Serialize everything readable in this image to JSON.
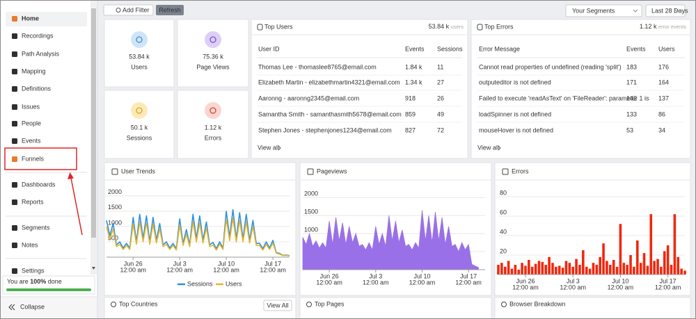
{
  "sidebar": {
    "nav": [
      "Home",
      "Recordings",
      "Path Analysis",
      "Mapping",
      "Definitions",
      "Issues",
      "People",
      "Events",
      "Funnels",
      "Dashboards",
      "Reports",
      "Segments",
      "Notes",
      "Settings"
    ],
    "progress_text": [
      "You are",
      "100%",
      "done"
    ],
    "collapse": "Collapse"
  },
  "toolbar": {
    "add_filter": "Add Filter",
    "refresh": "Refresh",
    "segments": "Your Segments",
    "date_range": "Last 28 Days"
  },
  "stats": [
    {
      "value": "53.84 k",
      "label": "Users"
    },
    {
      "value": "75.36 k",
      "label": "Page Views"
    },
    {
      "value": "50.1 k",
      "label": "Sessions"
    },
    {
      "value": "1.12 k",
      "label": "Errors"
    }
  ],
  "top_users": {
    "title": "Top Users",
    "total": "53.84 k",
    "unit": "users",
    "columns": [
      "User ID",
      "Events",
      "Sessions"
    ],
    "rows": [
      [
        "Thomas Lee - thomaslee8765@email.com",
        "1.84 k",
        11
      ],
      [
        "Elizabeth Martin - elizabethmartin4321@email.com",
        "1.34 k",
        27
      ],
      [
        "Aaronng - aaronng2345@email.com",
        918,
        26
      ],
      [
        "Samantha Smith - samanthasmith5678@email.com",
        859,
        49
      ],
      [
        "Stephen Jones - stephenjones1234@email.com",
        827,
        72
      ]
    ],
    "view_all": "View all"
  },
  "top_errors": {
    "title": "Top Errors",
    "total": "1.12 k",
    "unit": "error events",
    "columns": [
      "Error Message",
      "Events",
      "Users"
    ],
    "rows": [
      [
        "Cannot read properties of undefined (reading 'split')",
        183,
        176
      ],
      [
        "outputeditor is not defined",
        171,
        164
      ],
      [
        "Failed to execute 'readAsText' on 'FileReader': parameter 1 is",
        142,
        137
      ],
      [
        "loadSpinner is not defined",
        133,
        86
      ],
      [
        "mouseHover is not defined",
        53,
        34
      ]
    ],
    "view_all": "View all"
  },
  "chart_data": [
    {
      "type": "line",
      "title": "User Trends",
      "legend": "bottom",
      "grid": true,
      "xlim": [
        0,
        55
      ],
      "xticks": [
        {
          "value": 8,
          "label": "Jun 26",
          "sublabel": "12:00 am"
        },
        {
          "value": 22,
          "label": "Jul 3",
          "sublabel": "12:00 am"
        },
        {
          "value": 36,
          "label": "Jul 10",
          "sublabel": "12:00 am"
        },
        {
          "value": 50,
          "label": "Jul 17",
          "sublabel": "12:00 am"
        }
      ],
      "ylim": [
        0,
        2200
      ],
      "yticks": [
        500,
        1000,
        1500,
        2000
      ],
      "series": [
        {
          "name": "Sessions",
          "color": "#2b8fe2",
          "values": [
            1200,
            700,
            1100,
            400,
            500,
            300,
            450,
            300,
            1300,
            500,
            1400,
            600,
            1350,
            500,
            1300,
            550,
            1100,
            400,
            500,
            300,
            450,
            280,
            1250,
            450,
            900,
            400,
            1400,
            600,
            1350,
            550,
            1150,
            400,
            480,
            280,
            500,
            300,
            1500,
            650,
            1550,
            600,
            1450,
            600,
            1400,
            550,
            1200,
            450,
            450,
            280,
            500,
            300,
            550,
            150,
            120,
            60,
            70,
            50
          ]
        },
        {
          "name": "Users",
          "color": "#e6b52c",
          "values": [
            1000,
            580,
            920,
            340,
            420,
            250,
            380,
            250,
            1080,
            420,
            1150,
            500,
            1120,
            420,
            1080,
            460,
            920,
            340,
            420,
            250,
            380,
            230,
            1040,
            380,
            750,
            340,
            1150,
            500,
            1120,
            460,
            960,
            340,
            400,
            230,
            420,
            250,
            1250,
            540,
            1280,
            500,
            1200,
            500,
            1160,
            460,
            1000,
            380,
            380,
            230,
            420,
            250,
            460,
            130,
            100,
            50,
            60,
            40
          ]
        }
      ]
    },
    {
      "type": "area",
      "title": "Pageviews",
      "grid": true,
      "color": "#9a70e8",
      "xlim": [
        0,
        55
      ],
      "xticks": [
        {
          "value": 8,
          "label": "Jun 26",
          "sublabel": "12:00 am"
        },
        {
          "value": 22,
          "label": "Jul 3",
          "sublabel": "12:00 am"
        },
        {
          "value": 36,
          "label": "Jul 10",
          "sublabel": "12:00 am"
        },
        {
          "value": 50,
          "label": "Jul 17",
          "sublabel": "12:00 am"
        }
      ],
      "ylim": [
        0,
        2100
      ],
      "yticks": [
        500,
        1000,
        1500,
        2000
      ],
      "values": [
        900,
        700,
        1000,
        650,
        800,
        600,
        750,
        600,
        1350,
        700,
        1450,
        800,
        1300,
        700,
        1200,
        750,
        1000,
        650,
        700,
        550,
        750,
        550,
        1200,
        700,
        1000,
        650,
        1500,
        800,
        1350,
        750,
        1100,
        650,
        700,
        550,
        750,
        600,
        1650,
        800,
        1500,
        750,
        1600,
        800,
        1450,
        700,
        1200,
        650,
        700,
        500,
        750,
        550,
        700,
        150,
        100,
        60,
        null,
        null
      ]
    },
    {
      "type": "bar",
      "title": "Errors",
      "grid": true,
      "color": "#f0280e",
      "xlim": [
        0,
        55
      ],
      "xticks": [
        {
          "value": 8,
          "label": "Jun 26",
          "sublabel": "12:00 am"
        },
        {
          "value": 22,
          "label": "Jul 3",
          "sublabel": "12:00 am"
        },
        {
          "value": 36,
          "label": "Jul 10",
          "sublabel": "12:00 am"
        },
        {
          "value": 50,
          "label": "Jul 17",
          "sublabel": "12:00 am"
        }
      ],
      "ylim": [
        0,
        85
      ],
      "yticks": [
        20,
        40,
        60,
        80
      ],
      "values": [
        10,
        12,
        8,
        14,
        6,
        10,
        5,
        12,
        9,
        15,
        8,
        11,
        14,
        13,
        10,
        18,
        12,
        8,
        9,
        7,
        14,
        12,
        8,
        16,
        10,
        25,
        8,
        6,
        12,
        10,
        18,
        32,
        14,
        10,
        15,
        8,
        52,
        12,
        10,
        20,
        8,
        35,
        12,
        22,
        9,
        62,
        14,
        16,
        8,
        24,
        30,
        10,
        62,
        18,
        6,
        4
      ]
    }
  ],
  "bottom": {
    "top_countries": "Top Countries",
    "view_all": "View All",
    "top_pages": "Top Pages",
    "browser_breakdown": "Browser Breakdown"
  }
}
